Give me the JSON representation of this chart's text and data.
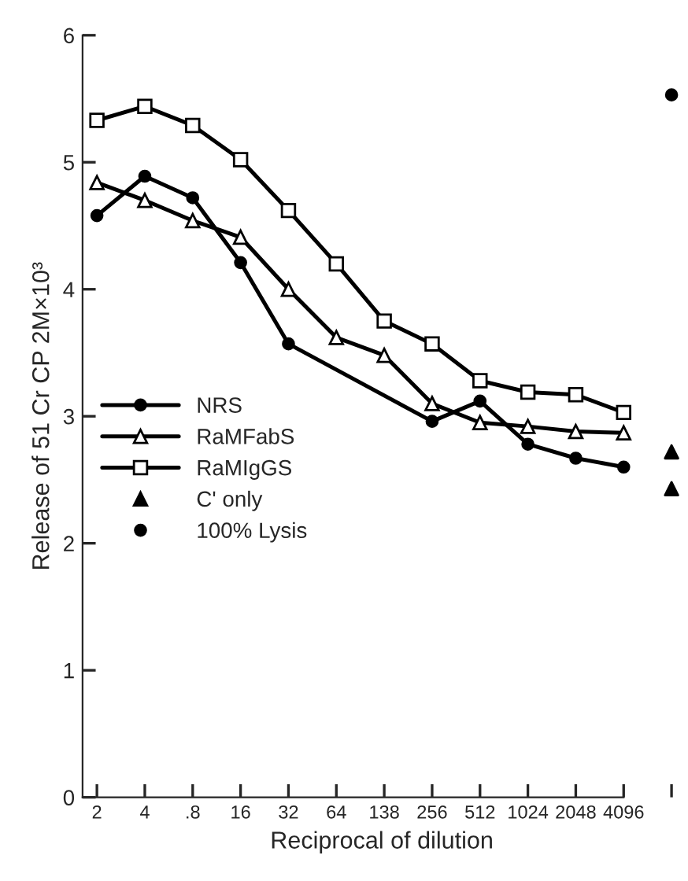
{
  "chart_data": {
    "type": "line",
    "xlabel": "Reciprocal of dilution",
    "ylabel": "Release of 51 Cr CP 2M×10³",
    "categories": [
      "2",
      "4",
      ".8",
      "16",
      "32",
      "64",
      "138",
      "256",
      "512",
      "1024",
      "2048",
      "4096",
      null
    ],
    "ylim": [
      0,
      6
    ],
    "yticks": [
      0,
      1,
      2,
      3,
      4,
      5,
      6
    ],
    "grid": false,
    "legend": "center left",
    "series": [
      {
        "name": "NRS",
        "color": "#000000",
        "marker": "circle",
        "values": [
          4.58,
          4.89,
          4.72,
          4.21,
          3.57,
          null,
          null,
          2.96,
          3.12,
          2.78,
          2.67,
          2.6,
          null
        ]
      },
      {
        "name": "RaMFabS",
        "color": "#000000",
        "marker": "triangle",
        "values": [
          4.84,
          4.7,
          4.54,
          4.41,
          4.0,
          3.62,
          3.48,
          3.1,
          2.95,
          2.92,
          2.88,
          2.87,
          null
        ]
      },
      {
        "name": "RaMIgGS",
        "color": "#000000",
        "marker": "square",
        "values": [
          5.33,
          5.44,
          5.29,
          5.02,
          4.62,
          4.2,
          3.75,
          3.57,
          3.28,
          3.19,
          3.17,
          3.03,
          null
        ]
      },
      {
        "name": "C' only",
        "type": "scatter",
        "color": "#000000",
        "marker": "triangle",
        "values": [
          null,
          null,
          null,
          null,
          null,
          null,
          null,
          null,
          null,
          null,
          null,
          null,
          2.72
        ]
      },
      {
        "type": "scatter",
        "color": "#000000",
        "marker": "triangle",
        "values": [
          null,
          null,
          null,
          null,
          null,
          null,
          null,
          null,
          null,
          null,
          null,
          null,
          2.43
        ]
      },
      {
        "name": "100% Lysis",
        "type": "scatter",
        "color": "#000000",
        "marker": "circle",
        "values": [
          null,
          null,
          null,
          null,
          null,
          null,
          null,
          null,
          null,
          null,
          null,
          null,
          5.53
        ]
      }
    ]
  }
}
